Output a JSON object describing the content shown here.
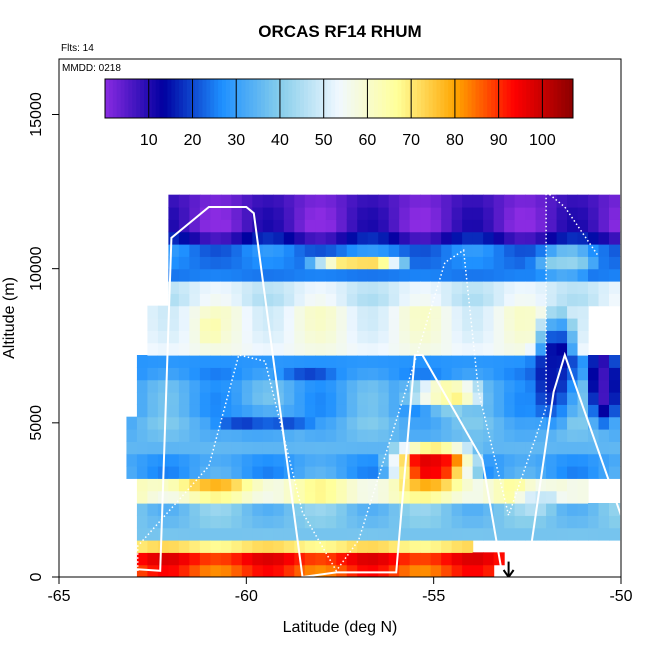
{
  "chart_data": {
    "type": "heatmap",
    "title": "ORCAS RF14 RHUM",
    "annotations": {
      "flights": "Flts: 14",
      "date": "MMDD: 0218"
    },
    "xlabel": "Latitude (deg N)",
    "ylabel": "Altitude (m)",
    "xlim": [
      -65,
      -50
    ],
    "ylim": [
      0,
      16800
    ],
    "x_ticks": [
      -65,
      -60,
      -55,
      -50
    ],
    "x_tick_labels": [
      "-65",
      "-60",
      "-55",
      "-50"
    ],
    "y_ticks": [
      0,
      5000,
      10000,
      15000
    ],
    "y_tick_labels": [
      "0",
      "5000",
      "10000",
      "15000"
    ],
    "colorbar": {
      "position": "top-inset",
      "range": [
        0,
        107
      ],
      "ticks": [
        10,
        20,
        30,
        40,
        50,
        60,
        70,
        80,
        90,
        100
      ],
      "tick_labels": [
        "10",
        "20",
        "30",
        "40",
        "50",
        "60",
        "70",
        "80",
        "90",
        "100"
      ],
      "colors": [
        "#8a2be2",
        "#0000a0",
        "#1e90ff",
        "#87ceeb",
        "#f0f8ff",
        "#ffff99",
        "#ffa500",
        "#ff0000",
        "#8b0000"
      ]
    },
    "cell_size": {
      "lat": 0.28,
      "alt": 400
    },
    "grid": false,
    "bands": [
      {
        "alt": [
          0,
          400
        ],
        "lat": [
          -63.0,
          -53.5
        ],
        "value": 88
      },
      {
        "alt": [
          400,
          900
        ],
        "lat": [
          -63.0,
          -53.0
        ],
        "value": 93
      },
      {
        "alt": [
          900,
          1300
        ],
        "lat": [
          -63.0,
          -54.0
        ],
        "value": 70
      },
      {
        "alt": [
          1300,
          2500
        ],
        "lat": [
          -63.0,
          -50.0
        ],
        "value": 38
      },
      {
        "alt": [
          2500,
          3100
        ],
        "lat": [
          -63.0,
          -51.0
        ],
        "value": 62
      },
      {
        "alt": [
          3100,
          4000
        ],
        "lat": [
          -63.2,
          -50.0
        ],
        "value": 30
      },
      {
        "alt": [
          4000,
          5300
        ],
        "lat": [
          -63.2,
          -50.0
        ],
        "value": 35
      },
      {
        "alt": [
          5300,
          6400
        ],
        "lat": [
          -63.0,
          -50.0
        ],
        "value": 32
      },
      {
        "alt": [
          6400,
          7400
        ],
        "lat": [
          -62.8,
          -50.0
        ],
        "value": 28
      },
      {
        "alt": [
          7400,
          8700
        ],
        "lat": [
          -62.6,
          -51.0
        ],
        "value": 55
      },
      {
        "alt": [
          8700,
          9600
        ],
        "lat": [
          -62.2,
          -50.0
        ],
        "value": 50
      },
      {
        "alt": [
          9600,
          10700
        ],
        "lat": [
          -62.2,
          -50.0
        ],
        "value": 25
      },
      {
        "alt": [
          10700,
          11300
        ],
        "lat": [
          -62.0,
          -50.0
        ],
        "value": 12
      },
      {
        "alt": [
          11300,
          12300
        ],
        "lat": [
          -62.0,
          -52.0
        ],
        "value": 5
      },
      {
        "alt": [
          11300,
          12500
        ],
        "lat": [
          -52.0,
          -50.0
        ],
        "value": 5
      }
    ],
    "patches": [
      {
        "lat": [
          -56.5,
          -53.5
        ],
        "alt": [
          2700,
          4600
        ],
        "value": 85
      },
      {
        "lat": [
          -55.8,
          -54.2
        ],
        "alt": [
          3200,
          4200
        ],
        "value": 94
      },
      {
        "lat": [
          -63.0,
          -59.0
        ],
        "alt": [
          2600,
          3200
        ],
        "value": 72
      },
      {
        "lat": [
          -58.5,
          -55.5
        ],
        "alt": [
          9800,
          10600
        ],
        "value": 70
      },
      {
        "lat": [
          -56.0,
          -53.5
        ],
        "alt": [
          5300,
          6600
        ],
        "value": 65
      },
      {
        "lat": [
          -61.0,
          -58.0
        ],
        "alt": [
          4500,
          5500
        ],
        "value": 18
      },
      {
        "lat": [
          -59.5,
          -57.5
        ],
        "alt": [
          6200,
          6800
        ],
        "value": 22
      },
      {
        "lat": [
          -52.5,
          -51.0
        ],
        "alt": [
          4500,
          9000
        ],
        "value": 15
      },
      {
        "lat": [
          -53.0,
          -51.5
        ],
        "alt": [
          2000,
          3200
        ],
        "value": 45
      },
      {
        "lat": [
          -61.5,
          -60.5
        ],
        "alt": [
          7600,
          8400
        ],
        "value": 60
      },
      {
        "lat": [
          -52.5,
          -50.5
        ],
        "alt": [
          9600,
          10800
        ],
        "value": 40
      },
      {
        "lat": [
          -51.0,
          -50.0
        ],
        "alt": [
          4600,
          8000
        ],
        "value": 8
      }
    ],
    "flight_track": {
      "lat": [
        -62.9,
        -62.9,
        -62.3,
        -62.0,
        -61.0,
        -60.0,
        -59.8,
        -58.5,
        -57.6,
        -57.5,
        -56.0,
        -55.5,
        -55.3,
        -53.7,
        -53.2,
        -52.5,
        -51.8,
        -51.5,
        -50.0
      ],
      "alt": [
        200,
        250,
        200,
        11000,
        12000,
        12000,
        11800,
        0,
        150,
        150,
        150,
        7200,
        7200,
        3800,
        300,
        150,
        6000,
        7200,
        2000
      ]
    },
    "dotted_track": {
      "lat": [
        -62.9,
        -62.9,
        -61.8,
        -61.0,
        -60.2,
        -59.5,
        -58.5,
        -57.6,
        -57.0,
        -55.5,
        -54.7,
        -54.2,
        -53.8,
        -53.0,
        -52.0,
        -52.0,
        -51.5,
        -50.6
      ],
      "alt": [
        200,
        1000,
        2500,
        3600,
        7200,
        7000,
        2100,
        200,
        1200,
        7000,
        10200,
        10600,
        6000,
        2000,
        5500,
        12500,
        12000,
        10400
      ]
    },
    "arrow": {
      "lat": -53.0,
      "alt": [
        500,
        0
      ]
    }
  }
}
